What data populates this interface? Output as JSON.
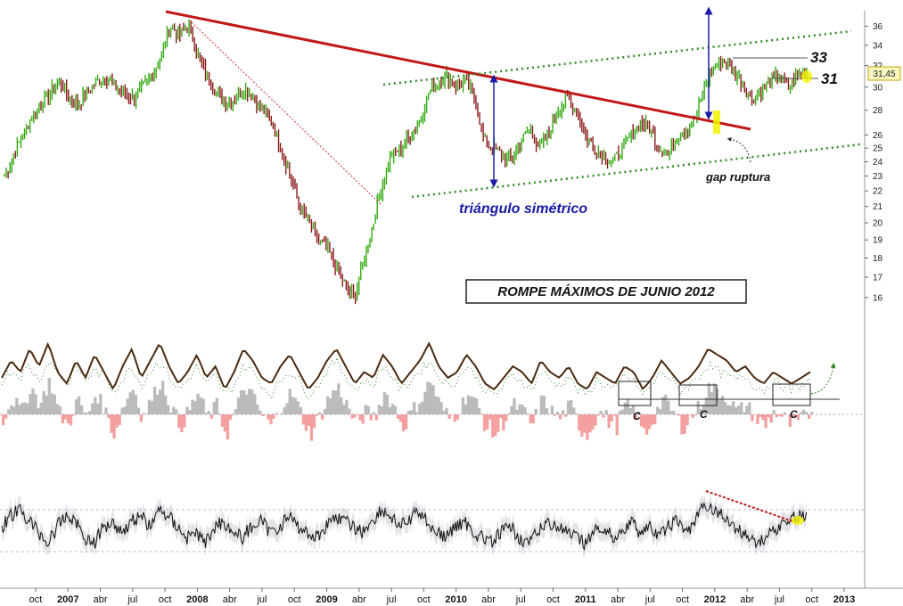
{
  "chart_data": [
    {
      "type": "candlestick",
      "panel": "price",
      "scale": "log",
      "ylim": [
        15,
        38
      ],
      "y_ticks": [
        16,
        17,
        18,
        19,
        20,
        21,
        22,
        23,
        24,
        25,
        26,
        28,
        30,
        32,
        34,
        36
      ],
      "last_price_label": "31,45",
      "x_ticks": [
        {
          "label": "oct",
          "year": false
        },
        {
          "label": "2007",
          "year": true
        },
        {
          "label": "abr",
          "year": false
        },
        {
          "label": "jul",
          "year": false
        },
        {
          "label": "oct",
          "year": false
        },
        {
          "label": "2008",
          "year": true
        },
        {
          "label": "abr",
          "year": false
        },
        {
          "label": "jul",
          "year": false
        },
        {
          "label": "oct",
          "year": false
        },
        {
          "label": "2009",
          "year": true
        },
        {
          "label": "abr",
          "year": false
        },
        {
          "label": "jul",
          "year": false
        },
        {
          "label": "oct",
          "year": false
        },
        {
          "label": "2010",
          "year": true
        },
        {
          "label": "abr",
          "year": false
        },
        {
          "label": "jul",
          "year": false
        },
        {
          "label": "oct",
          "year": false
        },
        {
          "label": "2011",
          "year": true
        },
        {
          "label": "abr",
          "year": false
        },
        {
          "label": "jul",
          "year": false
        },
        {
          "label": "oct",
          "year": false
        },
        {
          "label": "2012",
          "year": true
        },
        {
          "label": "abr",
          "year": false
        },
        {
          "label": "jul",
          "year": false
        },
        {
          "label": "oct",
          "year": false
        },
        {
          "label": "2013",
          "year": true
        }
      ],
      "series": [
        {
          "values": [
            23.0,
            24.5,
            26.0,
            27.5,
            28.5,
            29.5,
            30.5,
            29.0,
            28.5,
            29.5,
            30.5,
            31.0,
            30.0,
            29.5,
            29.0,
            30.0,
            31.0,
            33.0,
            36.0,
            35.0,
            36.0,
            33.0,
            31.0,
            29.5,
            28.5,
            29.0,
            30.0,
            29.0,
            28.0,
            27.0,
            25.0,
            23.0,
            21.0,
            20.0,
            19.0,
            18.5,
            17.5,
            16.5,
            16.0,
            18.0,
            20.0,
            22.5,
            24.5,
            25.0,
            26.0,
            27.0,
            29.5,
            30.5,
            31.0,
            30.0,
            30.5,
            29.0,
            25.5,
            25.0,
            24.5,
            24.0,
            25.5,
            26.5,
            25.0,
            26.0,
            28.0,
            29.0,
            28.0,
            26.0,
            25.0,
            24.5,
            24.0,
            25.0,
            26.0,
            27.0,
            26.5,
            25.0,
            24.5,
            26.0,
            26.5,
            27.5,
            30.0,
            32.0,
            32.5,
            31.5,
            30.5,
            29.0,
            29.5,
            30.5,
            31.0,
            30.0,
            31.0,
            31.45
          ]
        }
      ]
    },
    {
      "type": "line",
      "panel": "oscillator",
      "series": [
        {
          "values": [
            0.4,
            0.7,
            0.5,
            0.9,
            0.6,
            1.0,
            0.5,
            0.3,
            0.7,
            0.4,
            0.8,
            0.5,
            0.2,
            0.6,
            0.9,
            0.4,
            0.7,
            1.0,
            0.6,
            0.3,
            0.5,
            0.8,
            0.4,
            0.6,
            0.2,
            0.5,
            0.9,
            0.7,
            0.4,
            0.3,
            0.6,
            0.8,
            0.5,
            0.2,
            0.4,
            0.7,
            0.9,
            0.6,
            0.3,
            0.5,
            0.4,
            0.8,
            0.6,
            0.3,
            0.5,
            0.7,
            1.0,
            0.6,
            0.4,
            0.5,
            0.8,
            0.6,
            0.3,
            0.2,
            0.4,
            0.6,
            0.5,
            0.3,
            0.7,
            0.5,
            0.4,
            0.6,
            0.3,
            0.2,
            0.5,
            0.4,
            0.3,
            0.6,
            0.5,
            0.2,
            0.4,
            0.7,
            0.5,
            0.3,
            0.4,
            0.6,
            0.9,
            0.8,
            0.7,
            0.5,
            0.6,
            0.4,
            0.3,
            0.5,
            0.4,
            0.3,
            0.4,
            0.5
          ]
        },
        {
          "values": [
            0.6,
            0.8,
            0.7,
            0.9,
            0.6,
            1.0,
            0.8,
            0.5,
            0.9,
            0.6,
            0.8,
            0.7,
            0.4,
            0.6,
            0.9,
            0.5,
            0.8,
            1.0,
            0.7,
            0.4,
            0.6,
            0.9,
            0.5,
            0.7,
            0.3,
            0.5,
            0.9,
            0.8,
            0.5,
            0.3,
            0.6,
            0.8,
            0.6,
            0.3,
            0.5,
            0.8,
            1.0,
            0.7,
            0.4,
            0.6,
            0.5,
            0.9,
            0.7,
            0.4,
            0.6,
            0.8,
            1.0,
            0.7,
            0.5,
            0.6,
            0.9,
            0.7,
            0.4,
            0.3,
            0.5,
            0.7,
            0.6,
            0.4,
            0.8,
            0.6,
            0.5,
            0.7,
            0.4,
            0.3,
            0.6,
            0.5,
            0.4,
            0.7,
            0.6,
            0.3,
            0.5,
            0.8,
            0.6,
            0.4,
            0.5,
            0.7,
            0.9,
            0.8,
            0.7,
            0.6,
            0.7,
            0.5,
            0.4,
            0.6,
            0.5,
            0.4,
            0.5,
            0.6
          ]
        }
      ]
    },
    {
      "type": "line",
      "panel": "bottom",
      "series": [
        {
          "values": [
            0.5,
            0.7,
            0.8,
            0.6,
            0.4,
            0.2,
            0.5,
            0.7,
            0.6,
            0.3,
            0.2,
            0.5,
            0.6,
            0.4,
            0.6,
            0.7,
            0.5,
            0.8,
            0.7,
            0.5,
            0.3,
            0.4,
            0.2,
            0.5,
            0.6,
            0.4,
            0.3,
            0.5,
            0.6,
            0.4,
            0.5,
            0.7,
            0.5,
            0.4,
            0.3,
            0.5,
            0.7,
            0.6,
            0.5,
            0.4,
            0.6,
            0.8,
            0.7,
            0.5,
            0.6,
            0.8,
            0.6,
            0.4,
            0.3,
            0.5,
            0.6,
            0.4,
            0.3,
            0.2,
            0.4,
            0.5,
            0.3,
            0.2,
            0.4,
            0.6,
            0.5,
            0.4,
            0.3,
            0.2,
            0.4,
            0.5,
            0.3,
            0.4,
            0.6,
            0.4,
            0.5,
            0.3,
            0.5,
            0.6,
            0.4,
            0.6,
            0.9,
            0.8,
            0.7,
            0.5,
            0.4,
            0.3,
            0.2,
            0.4,
            0.5,
            0.6,
            0.7,
            0.7
          ]
        }
      ]
    }
  ],
  "annotations": {
    "pattern_label": "triángulo simétrico",
    "gap_label": "gap ruptura",
    "box_title": "ROMPE MÁXIMOS DE JUNIO 2012",
    "level_33": "33",
    "level_31": "31",
    "c_labels": [
      "C",
      "C",
      "C"
    ]
  },
  "colors": {
    "up": "#33aa11",
    "down": "#8b1a1a",
    "trend": "#c01818",
    "channel": "#2e8b22",
    "arrow": "#1a1aa6",
    "hist_pos": "#bbbbbb",
    "hist_neg": "#f4a0a0",
    "highlight": "#f2f200"
  }
}
